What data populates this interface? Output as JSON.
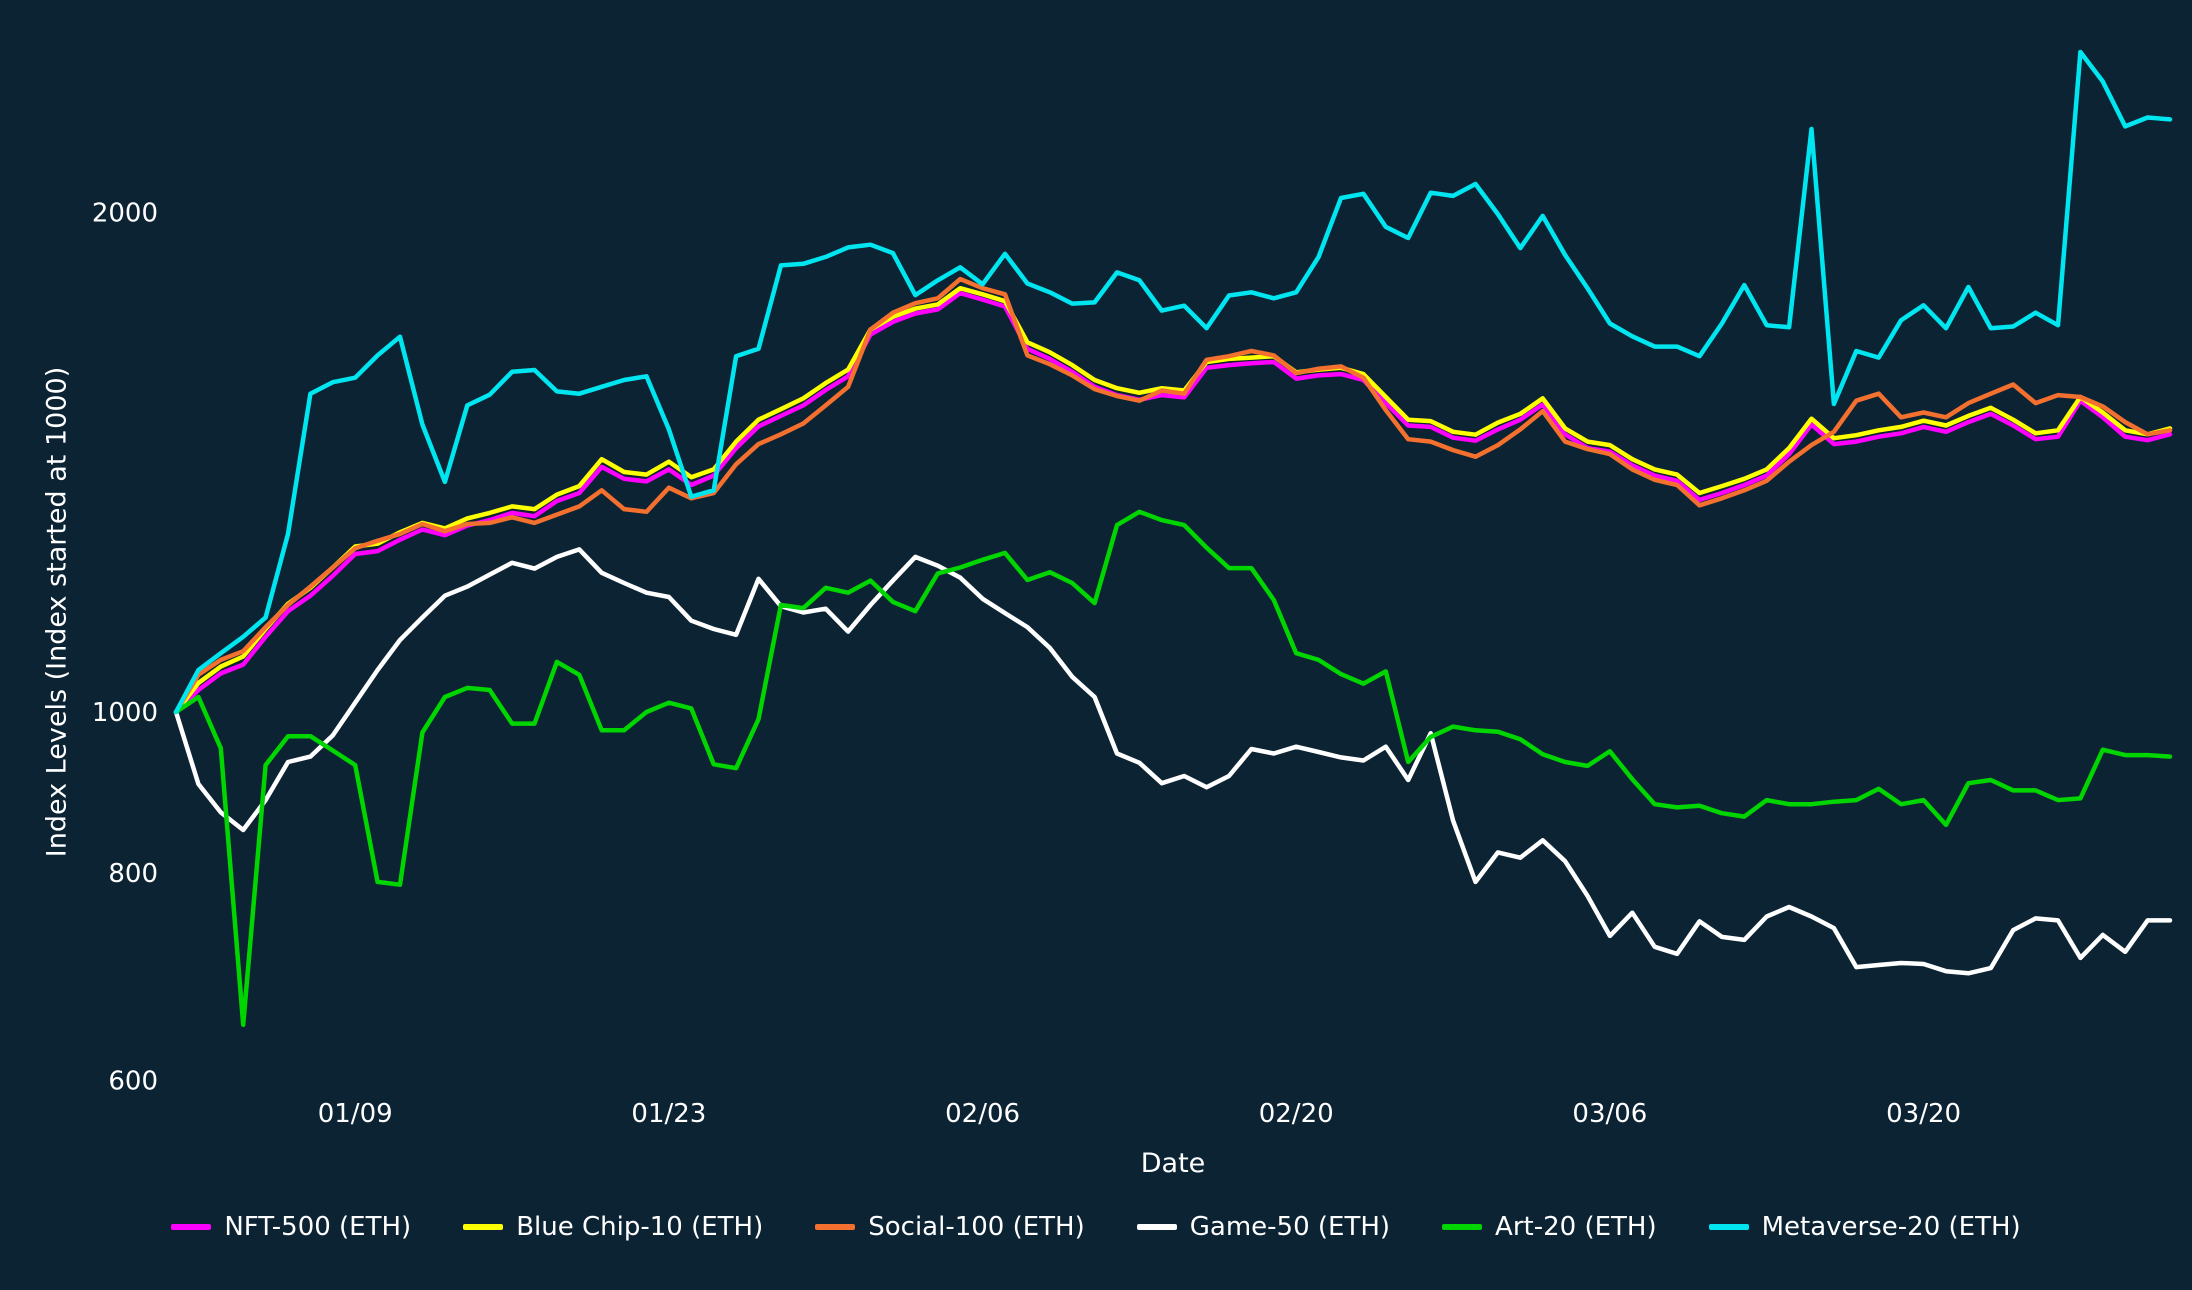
{
  "chart_data": {
    "type": "line",
    "title": "",
    "xlabel": "Date",
    "ylabel": "Index Levels (Index started at 1000)",
    "yscale": "log",
    "grid": false,
    "legend_position": "bottom",
    "background_color": "#0C2334",
    "text_color": "#FFFFFF",
    "ylim": [
      592,
      2575
    ],
    "yticks": [
      600,
      800,
      1000,
      2000
    ],
    "xticks": [
      "01/09",
      "01/23",
      "02/06",
      "02/20",
      "03/06",
      "03/20"
    ],
    "x": [
      "01/01",
      "01/02",
      "01/03",
      "01/04",
      "01/05",
      "01/06",
      "01/07",
      "01/08",
      "01/09",
      "01/10",
      "01/11",
      "01/12",
      "01/13",
      "01/14",
      "01/15",
      "01/16",
      "01/17",
      "01/18",
      "01/19",
      "01/20",
      "01/21",
      "01/22",
      "01/23",
      "01/24",
      "01/25",
      "01/26",
      "01/27",
      "01/28",
      "01/29",
      "01/30",
      "01/31",
      "02/01",
      "02/02",
      "02/03",
      "02/04",
      "02/05",
      "02/06",
      "02/07",
      "02/08",
      "02/09",
      "02/10",
      "02/11",
      "02/12",
      "02/13",
      "02/14",
      "02/15",
      "02/16",
      "02/17",
      "02/18",
      "02/19",
      "02/20",
      "02/21",
      "02/22",
      "02/23",
      "02/24",
      "02/25",
      "02/26",
      "02/27",
      "02/28",
      "03/01",
      "03/02",
      "03/03",
      "03/04",
      "03/05",
      "03/06",
      "03/07",
      "03/08",
      "03/09",
      "03/10",
      "03/11",
      "03/12",
      "03/13",
      "03/14",
      "03/15",
      "03/16",
      "03/17",
      "03/18",
      "03/19",
      "03/20",
      "03/21",
      "03/22",
      "03/23",
      "03/24",
      "03/25",
      "03/26",
      "03/27",
      "03/28",
      "03/29",
      "03/30",
      "03/31"
    ],
    "series": [
      {
        "name": "NFT-500 (ETH)",
        "color": "#FF00FF",
        "values": [
          1000,
          1031,
          1055,
          1068,
          1110,
          1150,
          1175,
          1208,
          1245,
          1250,
          1270,
          1288,
          1278,
          1295,
          1305,
          1318,
          1312,
          1340,
          1355,
          1405,
          1382,
          1377,
          1400,
          1370,
          1388,
          1442,
          1486,
          1508,
          1530,
          1563,
          1593,
          1688,
          1718,
          1738,
          1748,
          1788,
          1772,
          1755,
          1655,
          1632,
          1603,
          1570,
          1552,
          1542,
          1552,
          1547,
          1612,
          1618,
          1622,
          1625,
          1588,
          1595,
          1598,
          1585,
          1535,
          1488,
          1485,
          1463,
          1457,
          1480,
          1500,
          1532,
          1470,
          1442,
          1435,
          1408,
          1388,
          1378,
          1342,
          1355,
          1370,
          1388,
          1430,
          1490,
          1450,
          1455,
          1465,
          1472,
          1485,
          1475,
          1495,
          1512,
          1488,
          1460,
          1465,
          1540,
          1505,
          1465,
          1458,
          1470
        ]
      },
      {
        "name": "Blue Chip-10 (ETH)",
        "color": "#FFFF00",
        "values": [
          1000,
          1041,
          1065,
          1080,
          1122,
          1162,
          1188,
          1222,
          1258,
          1263,
          1283,
          1300,
          1290,
          1308,
          1318,
          1330,
          1325,
          1352,
          1368,
          1420,
          1395,
          1390,
          1415,
          1385,
          1400,
          1455,
          1500,
          1522,
          1545,
          1578,
          1608,
          1700,
          1730,
          1750,
          1760,
          1800,
          1785,
          1768,
          1670,
          1647,
          1618,
          1585,
          1567,
          1557,
          1567,
          1562,
          1625,
          1632,
          1635,
          1638,
          1602,
          1608,
          1612,
          1598,
          1548,
          1500,
          1497,
          1475,
          1469,
          1494,
          1512,
          1545,
          1482,
          1455,
          1448,
          1420,
          1400,
          1390,
          1355,
          1368,
          1382,
          1400,
          1442,
          1502,
          1462,
          1468,
          1478,
          1485,
          1498,
          1488,
          1508,
          1525,
          1500,
          1472,
          1478,
          1548,
          1515,
          1478,
          1470,
          1482
        ]
      },
      {
        "name": "Social-100 (ETH)",
        "color": "#F4702E",
        "values": [
          1000,
          1053,
          1075,
          1088,
          1125,
          1160,
          1190,
          1222,
          1255,
          1268,
          1280,
          1298,
          1285,
          1298,
          1300,
          1310,
          1300,
          1315,
          1330,
          1360,
          1325,
          1320,
          1365,
          1345,
          1355,
          1410,
          1450,
          1470,
          1492,
          1530,
          1570,
          1700,
          1740,
          1763,
          1775,
          1823,
          1800,
          1785,
          1640,
          1620,
          1595,
          1565,
          1550,
          1540,
          1562,
          1555,
          1630,
          1638,
          1650,
          1640,
          1600,
          1610,
          1615,
          1590,
          1520,
          1460,
          1455,
          1438,
          1425,
          1448,
          1480,
          1518,
          1455,
          1440,
          1430,
          1400,
          1380,
          1370,
          1332,
          1345,
          1360,
          1378,
          1415,
          1448,
          1475,
          1540,
          1555,
          1505,
          1515,
          1505,
          1535,
          1555,
          1575,
          1535,
          1552,
          1548,
          1528,
          1495,
          1470,
          1478
        ]
      },
      {
        "name": "Game-50 (ETH)",
        "color": "#FFFFFF",
        "values": [
          1000,
          905,
          870,
          849,
          885,
          933,
          940,
          968,
          1013,
          1060,
          1105,
          1140,
          1175,
          1190,
          1210,
          1230,
          1220,
          1240,
          1253,
          1213,
          1196,
          1180,
          1173,
          1135,
          1122,
          1113,
          1203,
          1158,
          1148,
          1154,
          1118,
          1160,
          1200,
          1240,
          1225,
          1205,
          1170,
          1147,
          1125,
          1093,
          1050,
          1021,
          944,
          932,
          906,
          915,
          901,
          915,
          950,
          944,
          953,
          946,
          939,
          935,
          953,
          910,
          971,
          860,
          790,
          823,
          817,
          837,
          813,
          775,
          733,
          757,
          722,
          715,
          748,
          732,
          729,
          753,
          763,
          753,
          741,
          702,
          704,
          706,
          705,
          698,
          696,
          701,
          739,
          751,
          749,
          711,
          734,
          717,
          749,
          749
        ]
      },
      {
        "name": "Art-20 (ETH)",
        "color": "#00D500",
        "values": [
          1000,
          1021,
          951,
          648,
          929,
          967,
          967,
          948,
          929,
          790,
          787,
          972,
          1021,
          1034,
          1031,
          984,
          984,
          1072,
          1053,
          975,
          975,
          1000,
          1013,
          1005,
          930,
          925,
          990,
          1160,
          1155,
          1188,
          1180,
          1200,
          1165,
          1150,
          1212,
          1222,
          1235,
          1247,
          1201,
          1214,
          1196,
          1163,
          1296,
          1320,
          1305,
          1296,
          1256,
          1221,
          1221,
          1168,
          1085,
          1075,
          1054,
          1040,
          1058,
          933,
          966,
          980,
          975,
          973,
          963,
          943,
          933,
          928,
          947,
          911,
          880,
          876,
          878,
          869,
          865,
          885,
          880,
          880,
          883,
          885,
          899,
          880,
          885,
          855,
          906,
          910,
          897,
          897,
          885,
          887,
          949,
          942,
          942,
          940
        ]
      },
      {
        "name": "Metaverse-20 (ETH)",
        "color": "#00E6F0",
        "values": [
          1000,
          1060,
          1085,
          1110,
          1140,
          1280,
          1555,
          1580,
          1590,
          1640,
          1683,
          1490,
          1376,
          1530,
          1553,
          1603,
          1607,
          1560,
          1555,
          1570,
          1585,
          1593,
          1480,
          1348,
          1360,
          1638,
          1655,
          1858,
          1862,
          1880,
          1905,
          1912,
          1890,
          1783,
          1820,
          1853,
          1810,
          1888,
          1812,
          1790,
          1762,
          1765,
          1840,
          1820,
          1745,
          1757,
          1703,
          1782,
          1790,
          1775,
          1790,
          1880,
          2040,
          2052,
          1960,
          1930,
          2055,
          2046,
          2080,
          1995,
          1903,
          1990,
          1885,
          1800,
          1714,
          1684,
          1660,
          1660,
          1638,
          1714,
          1808,
          1710,
          1705,
          2245,
          1533,
          1650,
          1635,
          1722,
          1758,
          1703,
          1803,
          1703,
          1707,
          1740,
          1710,
          2498,
          2398,
          2253,
          2281,
          2275
        ]
      }
    ]
  }
}
